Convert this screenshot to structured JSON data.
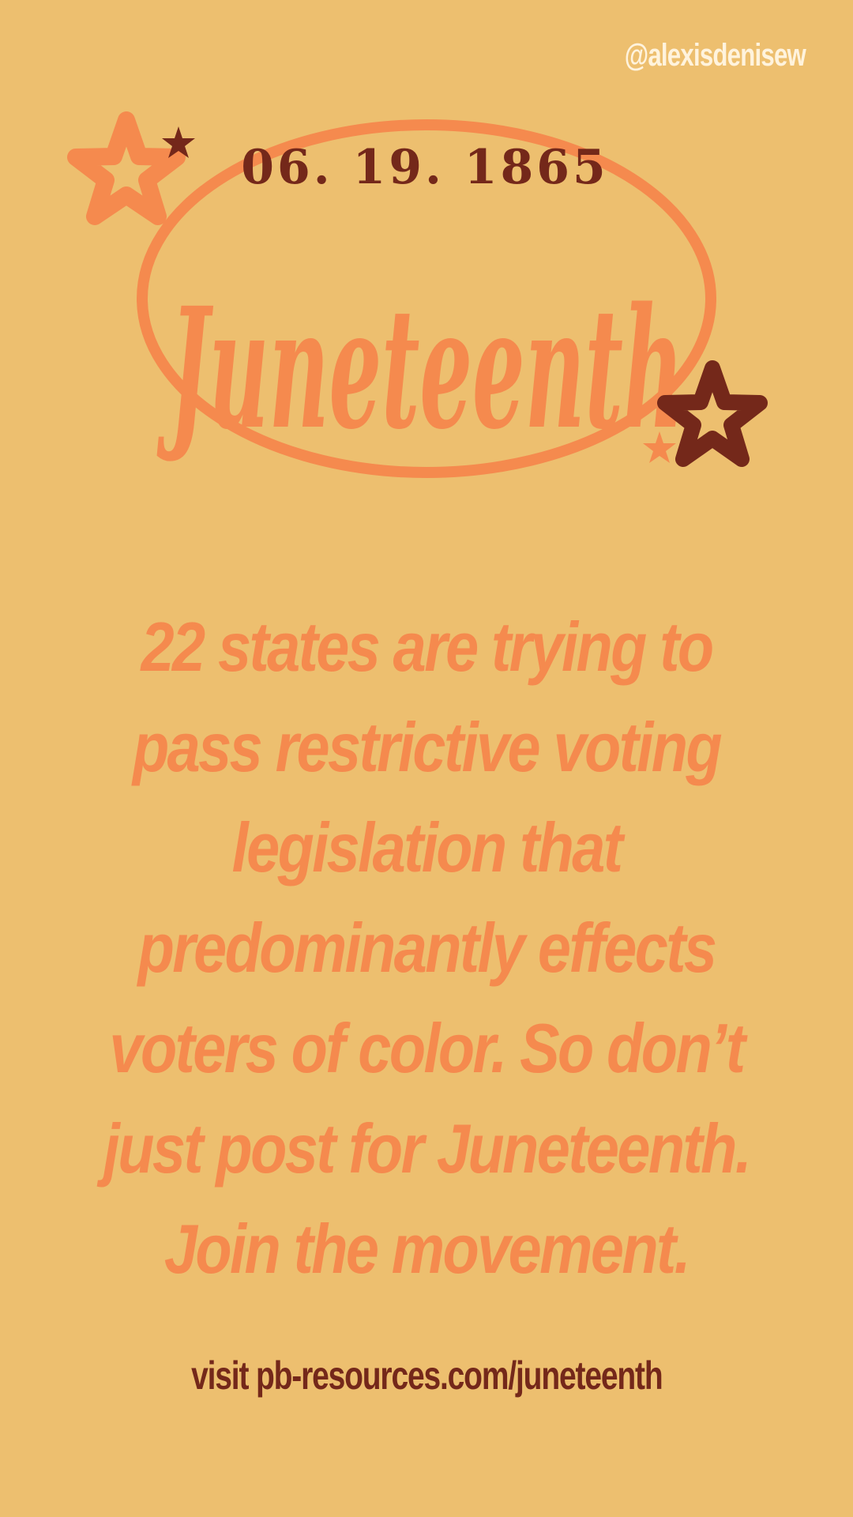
{
  "colors": {
    "background": "#EDBF6F",
    "accent_orange": "#F58A4E",
    "dark_brown": "#74281A",
    "handle_light": "#FFF3DD"
  },
  "header": {
    "handle": "@alexisdenisew"
  },
  "logo": {
    "date": "06. 19. 1865",
    "title": "Juneteenth",
    "icons": [
      "star-icon",
      "star-icon",
      "star-icon",
      "star-icon"
    ]
  },
  "message": {
    "body": "22 states are trying to pass restrictive voting legislation that predominantly effects voters of color. So don’t just post for Juneteenth. Join the movement."
  },
  "footer": {
    "cta": "visit pb-resources.com/juneteenth"
  }
}
